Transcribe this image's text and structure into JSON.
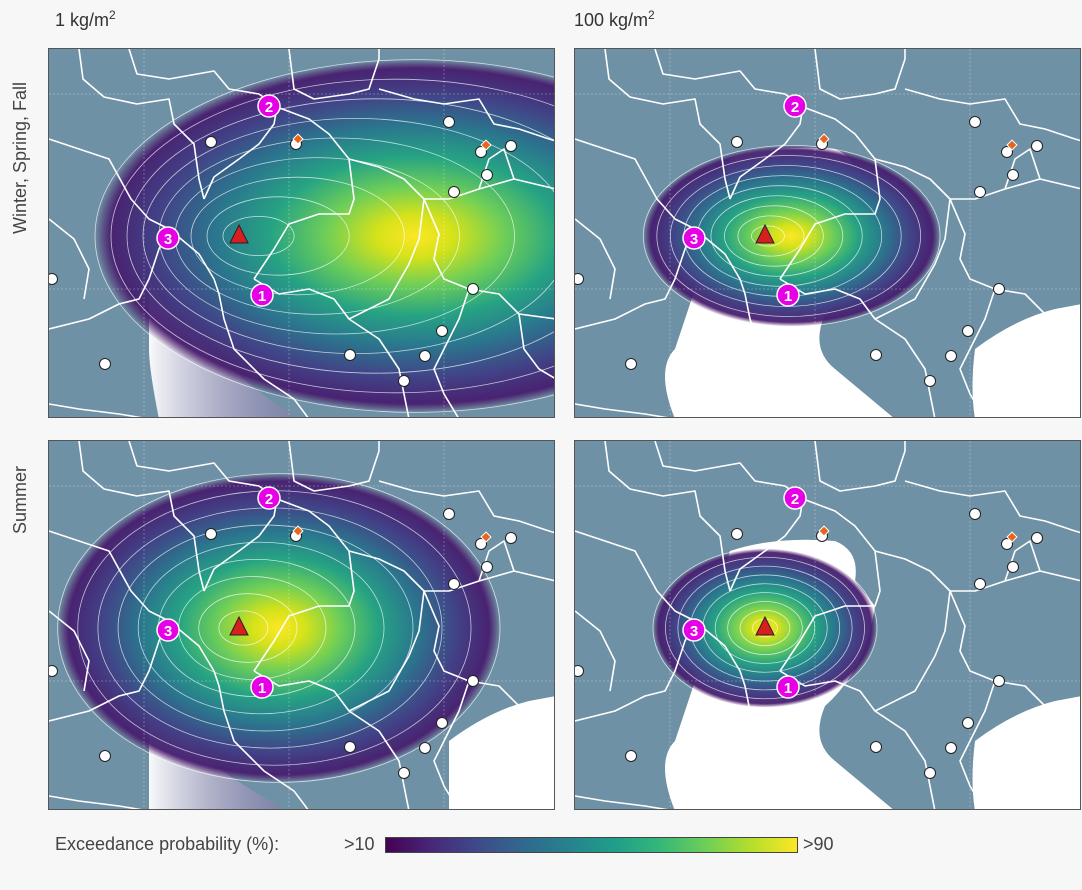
{
  "columns": [
    {
      "prefix": "1 kg/m",
      "sup": "2"
    },
    {
      "prefix": "100 kg/m",
      "sup": "2"
    }
  ],
  "rows": [
    "Winter, Spring, Fall",
    "Summer"
  ],
  "legend": {
    "label": "Exceedance probability (%):",
    "min_label": ">10",
    "max_label": ">90",
    "colormap": "viridis"
  },
  "markers": [
    "1",
    "2",
    "3"
  ],
  "colors": {
    "land": "#6f91a6",
    "marker_badge": "#e600e6",
    "volcano": "#d81f1f",
    "border": "#ffffff",
    "orange_marker": "#e8641b"
  },
  "icons": [
    "volcano-triangle-icon",
    "city-circle-icon",
    "location-number-icon",
    "orange-diamond-icon"
  ]
}
